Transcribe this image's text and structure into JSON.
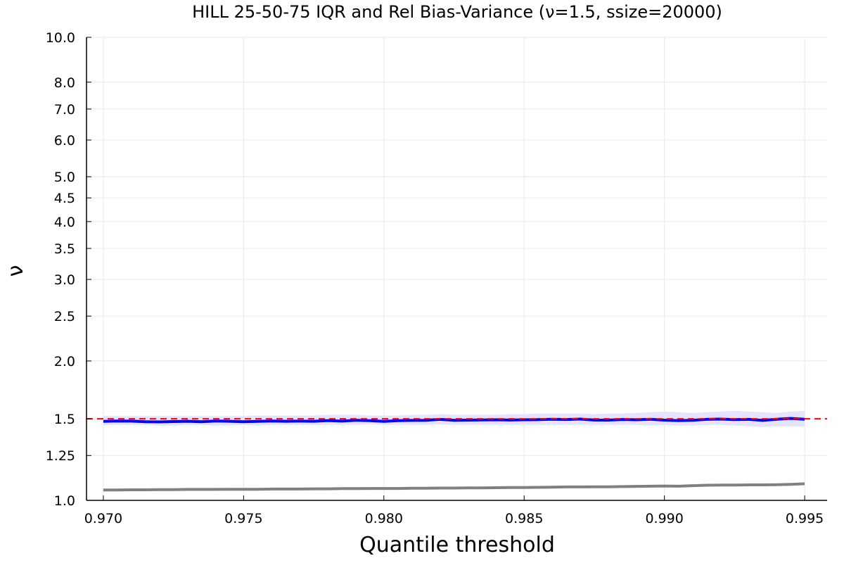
{
  "chart_data": {
    "type": "line",
    "title": "HILL 25-50-75 IQR and Rel Bias-Variance (ν=1.5, ssize=20000)",
    "xlabel": "Quantile threshold",
    "ylabel": "ν",
    "xlim": [
      0.9694,
      0.9958
    ],
    "ylim": [
      1.0,
      10.0
    ],
    "yscale": "log",
    "grid": true,
    "legend": "none",
    "x_ticks": [
      {
        "value": 0.97,
        "label": "0.970"
      },
      {
        "value": 0.975,
        "label": "0.975"
      },
      {
        "value": 0.98,
        "label": "0.980"
      },
      {
        "value": 0.985,
        "label": "0.985"
      },
      {
        "value": 0.99,
        "label": "0.990"
      },
      {
        "value": 0.995,
        "label": "0.995"
      }
    ],
    "y_ticks": [
      {
        "value": 1.0,
        "label": "1.0"
      },
      {
        "value": 1.25,
        "label": "1.25"
      },
      {
        "value": 1.5,
        "label": "1.5"
      },
      {
        "value": 2.0,
        "label": "2.0"
      },
      {
        "value": 2.5,
        "label": "2.5"
      },
      {
        "value": 3.0,
        "label": "3.0"
      },
      {
        "value": 3.5,
        "label": "3.5"
      },
      {
        "value": 4.0,
        "label": "4.0"
      },
      {
        "value": 4.5,
        "label": "4.5"
      },
      {
        "value": 5.0,
        "label": "5.0"
      },
      {
        "value": 6.0,
        "label": "6.0"
      },
      {
        "value": 7.0,
        "label": "7.0"
      },
      {
        "value": 8.0,
        "label": "8.0"
      },
      {
        "value": 10.0,
        "label": "10.0"
      }
    ],
    "x": [
      0.97,
      0.9705,
      0.971,
      0.9715,
      0.972,
      0.9725,
      0.973,
      0.9735,
      0.974,
      0.9745,
      0.975,
      0.9755,
      0.976,
      0.9765,
      0.977,
      0.9775,
      0.978,
      0.9785,
      0.979,
      0.9795,
      0.98,
      0.9805,
      0.981,
      0.9815,
      0.982,
      0.9825,
      0.983,
      0.9835,
      0.984,
      0.9845,
      0.985,
      0.9855,
      0.986,
      0.9865,
      0.987,
      0.9875,
      0.988,
      0.9885,
      0.989,
      0.9895,
      0.99,
      0.9905,
      0.991,
      0.9915,
      0.992,
      0.9925,
      0.993,
      0.9935,
      0.994,
      0.9945,
      0.995
    ],
    "series": [
      {
        "role": "iqr_upper",
        "color": "#e4e4ff",
        "values": [
          1.52,
          1.52,
          1.52,
          1.52,
          1.52,
          1.52,
          1.52,
          1.52,
          1.52,
          1.52,
          1.52,
          1.525,
          1.525,
          1.525,
          1.525,
          1.525,
          1.53,
          1.53,
          1.53,
          1.525,
          1.525,
          1.525,
          1.53,
          1.53,
          1.535,
          1.53,
          1.53,
          1.53,
          1.53,
          1.535,
          1.535,
          1.54,
          1.54,
          1.54,
          1.54,
          1.535,
          1.54,
          1.54,
          1.545,
          1.55,
          1.555,
          1.55,
          1.545,
          1.55,
          1.555,
          1.56,
          1.555,
          1.55,
          1.545,
          1.555,
          1.56
        ]
      },
      {
        "role": "iqr_lower",
        "color": "#e4e4ff",
        "values": [
          1.455,
          1.455,
          1.455,
          1.455,
          1.45,
          1.45,
          1.455,
          1.455,
          1.45,
          1.45,
          1.455,
          1.45,
          1.455,
          1.455,
          1.455,
          1.455,
          1.455,
          1.455,
          1.455,
          1.46,
          1.455,
          1.455,
          1.455,
          1.455,
          1.46,
          1.455,
          1.455,
          1.455,
          1.455,
          1.455,
          1.455,
          1.455,
          1.455,
          1.455,
          1.455,
          1.455,
          1.455,
          1.455,
          1.455,
          1.45,
          1.455,
          1.45,
          1.45,
          1.455,
          1.455,
          1.45,
          1.445,
          1.44,
          1.445,
          1.445,
          1.445
        ]
      },
      {
        "role": "median",
        "color": "#0000ff",
        "values": [
          1.481,
          1.484,
          1.483,
          1.479,
          1.477,
          1.48,
          1.482,
          1.479,
          1.484,
          1.482,
          1.479,
          1.481,
          1.484,
          1.482,
          1.483,
          1.482,
          1.487,
          1.483,
          1.489,
          1.486,
          1.481,
          1.486,
          1.488,
          1.489,
          1.496,
          1.489,
          1.49,
          1.492,
          1.493,
          1.491,
          1.493,
          1.494,
          1.497,
          1.495,
          1.498,
          1.491,
          1.49,
          1.495,
          1.493,
          1.497,
          1.49,
          1.487,
          1.489,
          1.496,
          1.498,
          1.494,
          1.496,
          1.488,
          1.497,
          1.503,
          1.497
        ]
      },
      {
        "role": "rel_bias_variance",
        "color": "#808080",
        "values": [
          1.053,
          1.053,
          1.054,
          1.054,
          1.055,
          1.055,
          1.056,
          1.056,
          1.056,
          1.057,
          1.057,
          1.057,
          1.058,
          1.058,
          1.058,
          1.059,
          1.059,
          1.06,
          1.06,
          1.061,
          1.061,
          1.061,
          1.062,
          1.062,
          1.063,
          1.063,
          1.064,
          1.064,
          1.065,
          1.066,
          1.066,
          1.067,
          1.068,
          1.069,
          1.069,
          1.07,
          1.07,
          1.071,
          1.072,
          1.073,
          1.074,
          1.073,
          1.076,
          1.078,
          1.079,
          1.079,
          1.08,
          1.08,
          1.081,
          1.083,
          1.086
        ]
      },
      {
        "role": "true_value",
        "color": "#ff0000",
        "value": 1.5,
        "style": "dashed"
      }
    ]
  }
}
